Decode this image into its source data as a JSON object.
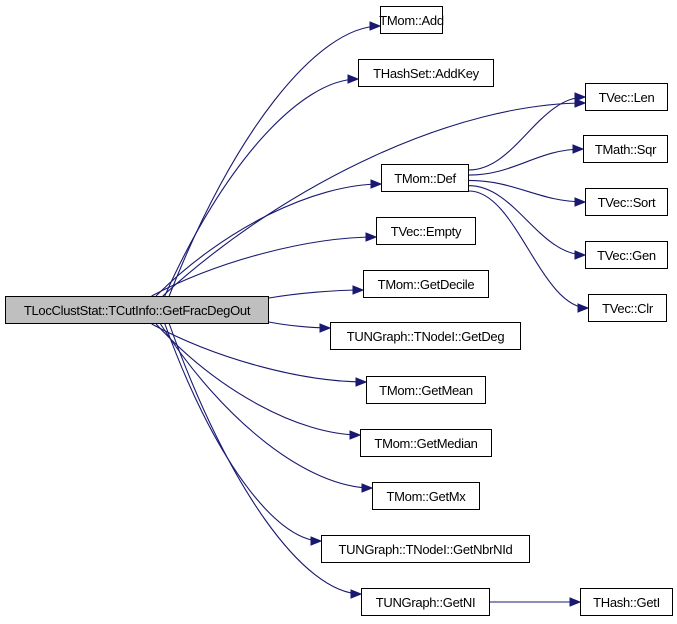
{
  "edge_color": "#191970",
  "root_fill": "#bfbfbf",
  "nodes": {
    "root": "TLocClustStat::TCutInfo::GetFracDegOut",
    "add": "TMom::Add",
    "addkey": "THashSet::AddKey",
    "len": "TVec::Len",
    "def": "TMom::Def",
    "sqr": "TMath::Sqr",
    "sort": "TVec::Sort",
    "gen": "TVec::Gen",
    "clr": "TVec::Clr",
    "empty": "TVec::Empty",
    "decile": "TMom::GetDecile",
    "getdeg": "TUNGraph::TNodeI::GetDeg",
    "mean": "TMom::GetMean",
    "median": "TMom::GetMedian",
    "mx": "TMom::GetMx",
    "nbrnid": "TUNGraph::TNodeI::GetNbrNId",
    "getni": "TUNGraph::GetNI",
    "geti": "THash::GetI"
  },
  "edges": [
    [
      "root",
      "add"
    ],
    [
      "root",
      "addkey"
    ],
    [
      "root",
      "len"
    ],
    [
      "root",
      "def"
    ],
    [
      "root",
      "empty"
    ],
    [
      "root",
      "decile"
    ],
    [
      "root",
      "getdeg"
    ],
    [
      "root",
      "mean"
    ],
    [
      "root",
      "median"
    ],
    [
      "root",
      "mx"
    ],
    [
      "root",
      "nbrnid"
    ],
    [
      "root",
      "getni"
    ],
    [
      "def",
      "len"
    ],
    [
      "def",
      "sqr"
    ],
    [
      "def",
      "sort"
    ],
    [
      "def",
      "gen"
    ],
    [
      "def",
      "clr"
    ],
    [
      "getni",
      "geti"
    ]
  ]
}
